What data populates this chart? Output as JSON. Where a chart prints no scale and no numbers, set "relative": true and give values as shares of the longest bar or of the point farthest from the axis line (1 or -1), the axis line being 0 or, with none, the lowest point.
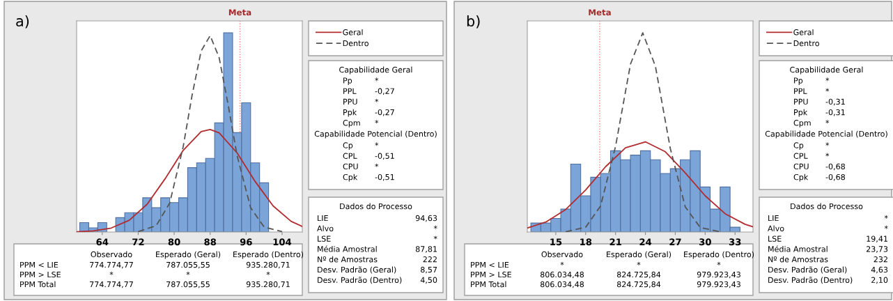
{
  "chart_data": [
    {
      "type": "histogram",
      "title": "a)",
      "relative": true,
      "bins": [
        59,
        61,
        63,
        65,
        67,
        69,
        71,
        73,
        75,
        77,
        79,
        81,
        83,
        85,
        87,
        89,
        91,
        93,
        95,
        97,
        99,
        101
      ],
      "values": [
        0.047,
        0.021,
        0.047,
        0,
        0.072,
        0.097,
        0.097,
        0.172,
        0.122,
        0.172,
        0.148,
        0.172,
        0.323,
        0.347,
        0.37,
        0.548,
        1,
        0.499,
        0.649,
        0.347,
        0.247
      ],
      "color": "#7ba4d9",
      "xlim": [
        58.3,
        108.5
      ],
      "xticks": [
        64,
        72,
        80,
        88,
        96,
        104
      ],
      "legend": "top right",
      "ref_lines": [
        {
          "axis": "x",
          "value": 94.63,
          "label": "Meta",
          "color": "#f08080",
          "line_style": "dotted"
        }
      ],
      "series": [
        {
          "type": "line",
          "name": "Geral",
          "color": "#b22b2e",
          "line_style": "solid",
          "x": [
            58.3,
            62,
            66,
            70,
            74,
            78,
            82,
            86,
            88,
            90,
            94,
            98,
            102,
            106,
            108.5
          ],
          "values": [
            0.001,
            0.006,
            0.02,
            0.059,
            0.14,
            0.268,
            0.41,
            0.504,
            0.515,
            0.498,
            0.397,
            0.254,
            0.131,
            0.054,
            0.028
          ]
        },
        {
          "type": "line",
          "name": "Dentro",
          "color": "#555555",
          "line_style": "dashed",
          "x": [
            72,
            76,
            79,
            82,
            84,
            86,
            88,
            90,
            92,
            94,
            97,
            100,
            104
          ],
          "values": [
            0.002,
            0.032,
            0.145,
            0.428,
            0.689,
            0.909,
            0.986,
            0.876,
            0.639,
            0.383,
            0.122,
            0.025,
            0.002
          ]
        }
      ]
    },
    {
      "type": "other",
      "title": "Capabilidade Geral",
      "y_categories": [
        "Pp",
        "PPL",
        "PPU",
        "Ppk",
        "Cpm"
      ],
      "cell_labels": [
        [
          "*"
        ],
        [
          "-0,27"
        ],
        [
          "*"
        ],
        [
          "-0,27"
        ],
        [
          "*"
        ]
      ]
    },
    {
      "type": "other",
      "title": "Capabilidade Potencial (Dentro)",
      "y_categories": [
        "Cp",
        "CPL",
        "CPU",
        "Cpk"
      ],
      "cell_labels": [
        [
          "*"
        ],
        [
          "-0,51"
        ],
        [
          "*"
        ],
        [
          "-0,51"
        ]
      ]
    },
    {
      "type": "other",
      "title": "Dados do Processo",
      "y_categories": [
        "LIE",
        "Alvo",
        "LSE",
        "Média Amostral",
        "Nº de Amostras",
        "Desv. Padrão (Geral)",
        "Desv. Padrão (Dentro)"
      ],
      "cell_labels": [
        [
          "94,63"
        ],
        [
          "*"
        ],
        [
          "*"
        ],
        [
          "87,81"
        ],
        [
          "222"
        ],
        [
          "8,57"
        ],
        [
          "4,50"
        ]
      ]
    },
    {
      "type": "other",
      "categories": [
        "Observado",
        "Esperado (Geral)",
        "Esperado (Dentro)"
      ],
      "y_categories": [
        "PPM < LIE",
        "PPM > LSE",
        "PPM Total"
      ],
      "cell_labels": [
        [
          "774.774,77",
          "787.055,55",
          "935.280,71"
        ],
        [
          "*",
          "*",
          "*"
        ],
        [
          "774.774,77",
          "787.055,55",
          "935.280,71"
        ]
      ]
    },
    {
      "type": "histogram",
      "title": "b)",
      "relative": true,
      "bins": [
        12.5,
        13.5,
        14.5,
        15.5,
        16.5,
        17.5,
        18.5,
        19.5,
        20.5,
        21.5,
        22.5,
        23.5,
        24.5,
        25.5,
        26.5,
        27.5,
        28.5,
        29.5,
        30.5,
        31.5,
        32.5,
        33.5
      ],
      "values": [
        0.045,
        0.045,
        0.068,
        0.115,
        0.341,
        0.182,
        0.275,
        0.294,
        0.408,
        0.363,
        0.386,
        0.408,
        0.363,
        0.294,
        0.318,
        0.363,
        0.408,
        0.226,
        0.115,
        0.226,
        0.024
      ],
      "color": "#7ba4d9",
      "xlim": [
        12.14,
        34.8
      ],
      "xticks": [
        15,
        18,
        21,
        24,
        27,
        30,
        33
      ],
      "legend": "top right",
      "ref_lines": [
        {
          "axis": "x",
          "value": 19.41,
          "label": "Meta",
          "color": "#f08080",
          "line_style": "dotted"
        }
      ],
      "series": [
        {
          "type": "line",
          "name": "Geral",
          "color": "#b22b2e",
          "line_style": "solid",
          "x": [
            12.14,
            14,
            16,
            18,
            20,
            22,
            24,
            26,
            28,
            30,
            32,
            34,
            34.8
          ],
          "values": [
            0.02,
            0.05,
            0.113,
            0.211,
            0.328,
            0.423,
            0.453,
            0.403,
            0.297,
            0.182,
            0.092,
            0.039,
            0.026
          ]
        },
        {
          "type": "line",
          "name": "Dentro",
          "color": "#555555",
          "line_style": "dashed",
          "x": [
            16,
            18,
            19.5,
            21,
            22.5,
            23.73,
            25,
            26.5,
            28,
            29.5,
            31.5
          ],
          "values": [
            0.001,
            0.024,
            0.131,
            0.43,
            0.843,
            1,
            0.833,
            0.419,
            0.126,
            0.023,
            0.001
          ]
        }
      ]
    },
    {
      "type": "other",
      "title": "Capabilidade Geral",
      "y_categories": [
        "Pp",
        "PPL",
        "PPU",
        "Ppk",
        "Cpm"
      ],
      "cell_labels": [
        [
          "*"
        ],
        [
          "*"
        ],
        [
          "-0,31"
        ],
        [
          "-0,31"
        ],
        [
          "*"
        ]
      ]
    },
    {
      "type": "other",
      "title": "Capabilidade Potencial (Dentro)",
      "y_categories": [
        "Cp",
        "CPL",
        "CPU",
        "Cpk"
      ],
      "cell_labels": [
        [
          "*"
        ],
        [
          "*"
        ],
        [
          "-0,68"
        ],
        [
          "-0,68"
        ]
      ]
    },
    {
      "type": "other",
      "title": "Dados do Processo",
      "y_categories": [
        "LIE",
        "Alvo",
        "LSE",
        "Média Amostral",
        "Nº de Amostras",
        "Desv. Padrão (Geral)",
        "Desv. Padrão (Dentro)"
      ],
      "cell_labels": [
        [
          "*"
        ],
        [
          "*"
        ],
        [
          "19,41"
        ],
        [
          "23,73"
        ],
        [
          "232"
        ],
        [
          "4,63"
        ],
        [
          "2,10"
        ]
      ]
    },
    {
      "type": "other",
      "categories": [
        "Observado",
        "Esperado (Geral)",
        "Esperado (Dentro)"
      ],
      "y_categories": [
        "PPM < LIE",
        "PPM > LSE",
        "PPM Total"
      ],
      "cell_labels": [
        [
          "*",
          "*",
          "*"
        ],
        [
          "806.034,48",
          "824.725,84",
          "979.923,43"
        ],
        [
          "806.034,48",
          "824.725,84",
          "979.923,43"
        ]
      ]
    }
  ]
}
